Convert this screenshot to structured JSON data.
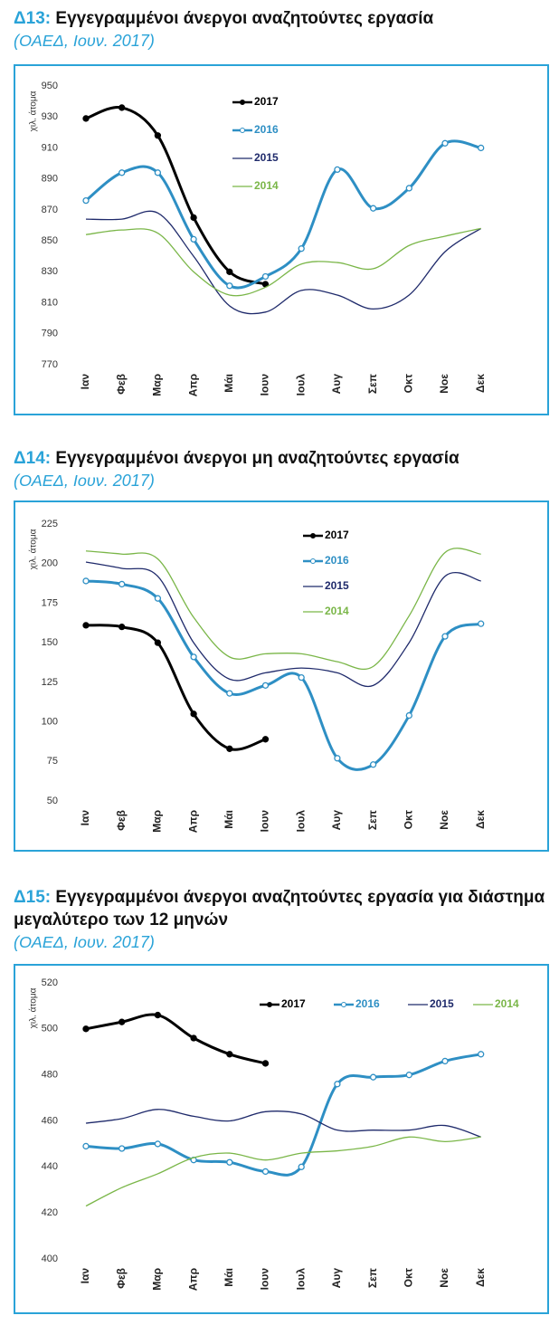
{
  "chart_data": [
    {
      "type": "line",
      "label": "Δ13:",
      "title": "Εγγεγραμμένοι άνεργοι αναζητούντες εργασία",
      "subtitle": "(ΟΑΕΔ, Ιουν. 2017)",
      "ylabel": "χιλ. άτομα",
      "categories": [
        "Ιαν",
        "Φεβ",
        "Μαρ",
        "Απρ",
        "Μάι",
        "Ιουν",
        "Ιουλ",
        "Αυγ",
        "Σεπ",
        "Οκτ",
        "Νοε",
        "Δεκ"
      ],
      "ylim": [
        770,
        950
      ],
      "yticks": [
        770,
        790,
        810,
        830,
        850,
        870,
        890,
        910,
        930,
        950
      ],
      "grid": false,
      "legend_orientation": "vertical",
      "series": [
        {
          "name": "2017",
          "color": "#000000",
          "marker": "filled",
          "width": 3,
          "values": [
            929,
            936,
            918,
            865,
            830,
            822,
            null,
            null,
            null,
            null,
            null,
            null
          ]
        },
        {
          "name": "2016",
          "color": "#2e8fc4",
          "marker": "hollow",
          "width": 3,
          "values": [
            876,
            894,
            894,
            851,
            821,
            827,
            845,
            896,
            871,
            884,
            913,
            910
          ]
        },
        {
          "name": "2015",
          "color": "#1f2a6b",
          "marker": "none",
          "width": 1.3,
          "values": [
            864,
            864,
            868,
            840,
            808,
            804,
            818,
            815,
            806,
            815,
            843,
            858
          ]
        },
        {
          "name": "2014",
          "color": "#7ab648",
          "marker": "none",
          "width": 1.3,
          "values": [
            854,
            857,
            855,
            830,
            815,
            820,
            835,
            836,
            832,
            847,
            853,
            858
          ]
        }
      ]
    },
    {
      "type": "line",
      "label": "Δ14:",
      "title": "Εγγεγραμμένοι άνεργοι μη αναζητούντες εργασία",
      "subtitle": "(ΟΑΕΔ, Ιουν. 2017)",
      "ylabel": "χιλ. άτομα",
      "categories": [
        "Ιαν",
        "Φεβ",
        "Μαρ",
        "Απρ",
        "Μάι",
        "Ιουν",
        "Ιουλ",
        "Αυγ",
        "Σεπ",
        "Οκτ",
        "Νοε",
        "Δεκ"
      ],
      "ylim": [
        50,
        225
      ],
      "yticks": [
        50,
        75,
        100,
        125,
        150,
        175,
        200,
        225
      ],
      "grid": false,
      "legend_orientation": "vertical",
      "series": [
        {
          "name": "2017",
          "color": "#000000",
          "marker": "filled",
          "width": 3,
          "values": [
            161,
            160,
            150,
            105,
            83,
            89,
            null,
            null,
            null,
            null,
            null,
            null
          ]
        },
        {
          "name": "2016",
          "color": "#2e8fc4",
          "marker": "hollow",
          "width": 3,
          "values": [
            189,
            187,
            178,
            141,
            118,
            123,
            128,
            77,
            73,
            104,
            154,
            162
          ]
        },
        {
          "name": "2015",
          "color": "#1f2a6b",
          "marker": "none",
          "width": 1.3,
          "values": [
            201,
            197,
            192,
            150,
            127,
            131,
            134,
            131,
            123,
            150,
            192,
            189
          ]
        },
        {
          "name": "2014",
          "color": "#7ab648",
          "marker": "none",
          "width": 1.3,
          "values": [
            208,
            206,
            203,
            166,
            141,
            143,
            143,
            138,
            135,
            167,
            207,
            206
          ]
        }
      ]
    },
    {
      "type": "line",
      "label": "Δ15:",
      "title": "Εγγεγραμμένοι άνεργοι αναζητούντες εργασία για διάστημα μεγαλύτερο των 12 μηνών",
      "subtitle": "(ΟΑΕΔ, Ιουν. 2017)",
      "ylabel": "χιλ. άτομα",
      "categories": [
        "Ιαν",
        "Φεβ",
        "Μαρ",
        "Απρ",
        "Μάι",
        "Ιουν",
        "Ιουλ",
        "Αυγ",
        "Σεπ",
        "Οκτ",
        "Νοε",
        "Δεκ"
      ],
      "ylim": [
        400,
        520
      ],
      "yticks": [
        400,
        420,
        440,
        460,
        480,
        500,
        520
      ],
      "grid": false,
      "legend_orientation": "horizontal",
      "series": [
        {
          "name": "2017",
          "color": "#000000",
          "marker": "filled",
          "width": 3,
          "values": [
            500,
            503,
            506,
            496,
            489,
            485,
            null,
            null,
            null,
            null,
            null,
            null
          ]
        },
        {
          "name": "2016",
          "color": "#2e8fc4",
          "marker": "hollow",
          "width": 3,
          "values": [
            449,
            448,
            450,
            443,
            442,
            438,
            440,
            476,
            479,
            480,
            486,
            489
          ]
        },
        {
          "name": "2015",
          "color": "#1f2a6b",
          "marker": "none",
          "width": 1.3,
          "values": [
            459,
            461,
            465,
            462,
            460,
            464,
            463,
            456,
            456,
            456,
            458,
            453
          ]
        },
        {
          "name": "2014",
          "color": "#7ab648",
          "marker": "none",
          "width": 1.3,
          "values": [
            423,
            431,
            437,
            444,
            446,
            443,
            446,
            447,
            449,
            453,
            451,
            453
          ]
        }
      ]
    }
  ]
}
